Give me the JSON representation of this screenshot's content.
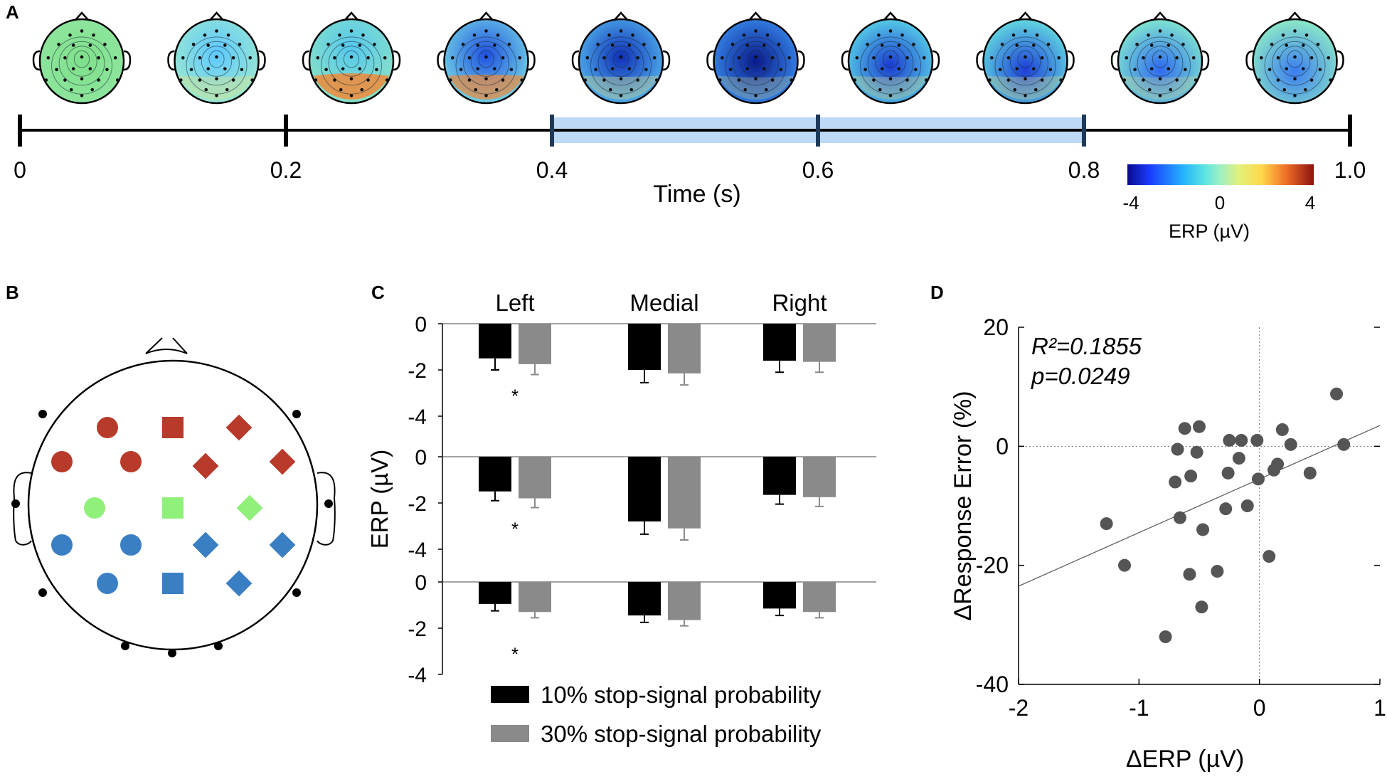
{
  "panels": {
    "A": {
      "label": "A"
    },
    "B": {
      "label": "B"
    },
    "C": {
      "label": "C"
    },
    "D": {
      "label": "D"
    }
  },
  "colors": {
    "red": "#b83a2a",
    "green": "#8ff07a",
    "blue": "#3a7fc4",
    "bar10": "#000000",
    "bar30": "#8a8a8a",
    "scatter_point": "#555555",
    "window_shade": "#bcd9f6",
    "timeline_tick": "#1e3a5a"
  },
  "timeline": {
    "tick_labels": [
      "0",
      "0.2",
      "0.4",
      "0.6",
      "0.8",
      "1.0"
    ],
    "tick_values": [
      0,
      0.2,
      0.4,
      0.6,
      0.8,
      1.0
    ],
    "axis_label": "Time (s)",
    "highlight_window": [
      0.4,
      0.8
    ],
    "topomap_count": 10
  },
  "colorbar": {
    "ticks": [
      "-4",
      "0",
      "4"
    ],
    "label": "ERP (µV)",
    "range": [
      -4,
      4
    ]
  },
  "electrode_groups": [
    {
      "region": "frontal",
      "color": "red",
      "markers": [
        "circle",
        "circle",
        "circle",
        "square",
        "diamond",
        "diamond",
        "diamond"
      ]
    },
    {
      "region": "central",
      "color": "green",
      "markers": [
        "circle",
        "square",
        "diamond"
      ]
    },
    {
      "region": "parietal",
      "color": "blue",
      "markers": [
        "circle",
        "circle",
        "circle",
        "square",
        "diamond",
        "diamond",
        "diamond"
      ]
    }
  ],
  "chart_data": [
    {
      "type": "bar",
      "panel": "C",
      "categories": [
        "Left",
        "Medial",
        "Right"
      ],
      "ylabel": "ERP (µV)",
      "ylim": [
        -4,
        0
      ],
      "yticks": [
        "0",
        "-2",
        "-4"
      ],
      "rows": [
        {
          "row": "frontal",
          "series": [
            {
              "name": "10% stop-signal probability",
              "values": [
                -1.5,
                -2.0,
                -1.6
              ],
              "errors": [
                0.5,
                0.55,
                0.5
              ]
            },
            {
              "name": "30% stop-signal probability",
              "values": [
                -1.75,
                -2.15,
                -1.65
              ],
              "errors": [
                0.45,
                0.5,
                0.45
              ]
            }
          ],
          "significance": [
            "*",
            "",
            ""
          ]
        },
        {
          "row": "central",
          "series": [
            {
              "name": "10% stop-signal probability",
              "values": [
                -1.5,
                -2.8,
                -1.65
              ],
              "errors": [
                0.4,
                0.55,
                0.4
              ]
            },
            {
              "name": "30% stop-signal probability",
              "values": [
                -1.8,
                -3.1,
                -1.75
              ],
              "errors": [
                0.4,
                0.5,
                0.4
              ]
            }
          ],
          "significance": [
            "*",
            "",
            ""
          ]
        },
        {
          "row": "parietal",
          "series": [
            {
              "name": "10% stop-signal probability",
              "values": [
                -0.95,
                -1.45,
                -1.15
              ],
              "errors": [
                0.3,
                0.3,
                0.3
              ]
            },
            {
              "name": "30% stop-signal probability",
              "values": [
                -1.3,
                -1.65,
                -1.3
              ],
              "errors": [
                0.25,
                0.25,
                0.25
              ]
            }
          ],
          "significance": [
            "*",
            "",
            ""
          ]
        }
      ],
      "legend": [
        "10% stop-signal probability",
        "30% stop-signal probability"
      ]
    },
    {
      "type": "scatter",
      "panel": "D",
      "xlabel": "ΔERP (µV)",
      "ylabel": "ΔResponse Error (%)",
      "xlim": [
        -2,
        1
      ],
      "ylim": [
        -40,
        20
      ],
      "xticks": [
        "-2",
        "-1",
        "0",
        "1"
      ],
      "xtick_values": [
        -2,
        -1,
        0,
        1
      ],
      "yticks": [
        "20",
        "0",
        "-20",
        "-40"
      ],
      "ytick_values": [
        20,
        0,
        -20,
        -40
      ],
      "annotation": [
        "R²=0.1855",
        "p=0.0249"
      ],
      "fit_line": {
        "x": [
          -2,
          1
        ],
        "y": [
          -23.5,
          3.5
        ]
      },
      "x": [
        -1.27,
        -1.12,
        -0.78,
        -0.7,
        -0.68,
        -0.66,
        -0.62,
        -0.58,
        -0.57,
        -0.52,
        -0.5,
        -0.48,
        -0.47,
        -0.35,
        -0.28,
        -0.26,
        -0.25,
        -0.17,
        -0.15,
        -0.1,
        -0.02,
        -0.01,
        0.08,
        0.12,
        0.15,
        0.19,
        0.26,
        0.42,
        0.64,
        0.7
      ],
      "y": [
        -13,
        -20,
        -32,
        -6,
        -0.5,
        -12,
        3,
        -21.5,
        -5,
        -1,
        3.3,
        -27,
        -14,
        -21,
        -10.5,
        -4.5,
        1,
        -2,
        1,
        -10,
        1,
        -5.5,
        -18.5,
        -4,
        -3,
        2.8,
        0.3,
        -4.5,
        8.8,
        0.3
      ]
    }
  ]
}
